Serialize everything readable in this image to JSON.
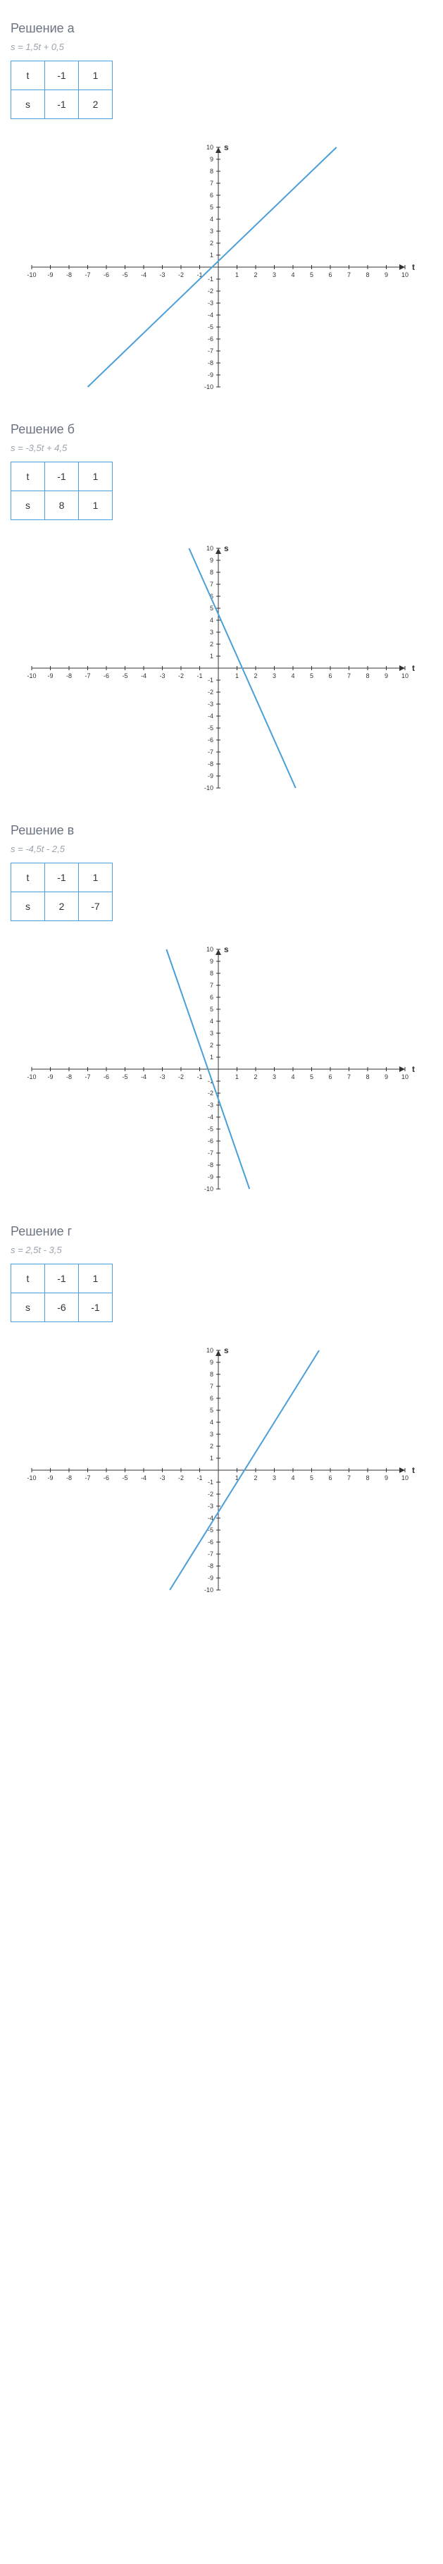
{
  "solutions": [
    {
      "title": "Решение а",
      "equation": "s = 1,5t + 0,5",
      "table": {
        "row1": [
          "t",
          "-1",
          "1"
        ],
        "row2": [
          "s",
          "-1",
          "2"
        ]
      },
      "chart": {
        "type": "line",
        "x_axis_label": "t",
        "y_axis_label": "s",
        "xlim": [
          -10,
          10
        ],
        "ylim": [
          -10,
          10
        ],
        "xtick_step": 1,
        "ytick_step": 1,
        "line_color": "#4a9fd8",
        "line_width": 2,
        "axis_color": "#333333",
        "tick_color": "#333333",
        "background_color": "#ffffff",
        "points": [
          [
            -7,
            -10
          ],
          [
            6.33,
            10
          ]
        ]
      }
    },
    {
      "title": "Решение б",
      "equation": "s = -3,5t + 4,5",
      "table": {
        "row1": [
          "t",
          "-1",
          "1"
        ],
        "row2": [
          "s",
          "8",
          "1"
        ]
      },
      "chart": {
        "type": "line",
        "x_axis_label": "t",
        "y_axis_label": "s",
        "xlim": [
          -10,
          10
        ],
        "ylim": [
          -10,
          10
        ],
        "xtick_step": 1,
        "ytick_step": 1,
        "line_color": "#4a9fd8",
        "line_width": 2,
        "axis_color": "#333333",
        "tick_color": "#333333",
        "background_color": "#ffffff",
        "points": [
          [
            -1.57,
            10
          ],
          [
            4.14,
            -10
          ]
        ]
      }
    },
    {
      "title": "Решение в",
      "equation": "s = -4,5t - 2,5",
      "table": {
        "row1": [
          "t",
          "-1",
          "1"
        ],
        "row2": [
          "s",
          "2",
          "-7"
        ]
      },
      "chart": {
        "type": "line",
        "x_axis_label": "t",
        "y_axis_label": "s",
        "xlim": [
          -10,
          10
        ],
        "ylim": [
          -10,
          10
        ],
        "xtick_step": 1,
        "ytick_step": 1,
        "line_color": "#4a9fd8",
        "line_width": 2,
        "axis_color": "#333333",
        "tick_color": "#333333",
        "background_color": "#ffffff",
        "points": [
          [
            -2.78,
            10
          ],
          [
            1.67,
            -10
          ]
        ]
      }
    },
    {
      "title": "Решение г",
      "equation": "s = 2,5t - 3,5",
      "table": {
        "row1": [
          "t",
          "-1",
          "1"
        ],
        "row2": [
          "s",
          "-6",
          "-1"
        ]
      },
      "chart": {
        "type": "line",
        "x_axis_label": "t",
        "y_axis_label": "s",
        "xlim": [
          -10,
          10
        ],
        "ylim": [
          -10,
          10
        ],
        "xtick_step": 1,
        "ytick_step": 1,
        "line_color": "#4a9fd8",
        "line_width": 2,
        "axis_color": "#333333",
        "tick_color": "#333333",
        "background_color": "#ffffff",
        "points": [
          [
            -2.6,
            -10
          ],
          [
            5.4,
            10
          ]
        ]
      }
    }
  ]
}
